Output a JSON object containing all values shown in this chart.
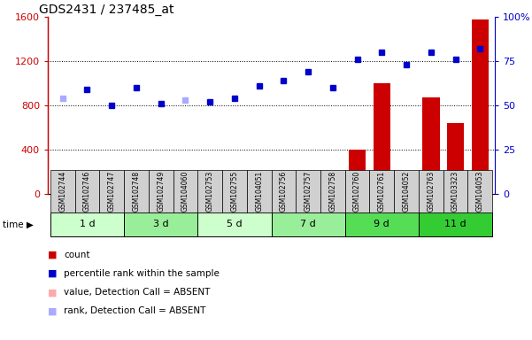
{
  "title": "GDS2431 / 237485_at",
  "samples": [
    "GSM102744",
    "GSM102746",
    "GSM102747",
    "GSM102748",
    "GSM102749",
    "GSM104060",
    "GSM102753",
    "GSM102755",
    "GSM104051",
    "GSM102756",
    "GSM102757",
    "GSM102758",
    "GSM102760",
    "GSM102761",
    "GSM104052",
    "GSM102763",
    "GSM103323",
    "GSM104053"
  ],
  "count_values": [
    20,
    80,
    15,
    90,
    25,
    130,
    90,
    30,
    50,
    110,
    130,
    105,
    400,
    1000,
    195,
    870,
    640,
    1580
  ],
  "percentile_right": [
    54,
    59,
    50,
    60,
    51,
    53,
    52,
    54,
    61,
    64,
    69,
    60,
    76,
    80,
    73,
    80,
    76,
    82
  ],
  "is_absent_count": [
    true,
    false,
    true,
    false,
    false,
    false,
    false,
    true,
    false,
    false,
    false,
    false,
    false,
    false,
    false,
    false,
    false,
    false
  ],
  "is_absent_rank": [
    true,
    false,
    false,
    false,
    false,
    true,
    false,
    false,
    false,
    false,
    false,
    false,
    false,
    false,
    false,
    false,
    false,
    false
  ],
  "time_groups": [
    {
      "label": "1 d",
      "start": 0,
      "end": 3,
      "color": "#ccffcc"
    },
    {
      "label": "3 d",
      "start": 3,
      "end": 6,
      "color": "#99ee99"
    },
    {
      "label": "5 d",
      "start": 6,
      "end": 9,
      "color": "#ccffcc"
    },
    {
      "label": "7 d",
      "start": 9,
      "end": 12,
      "color": "#99ee99"
    },
    {
      "label": "9 d",
      "start": 12,
      "end": 15,
      "color": "#55dd55"
    },
    {
      "label": "11 d",
      "start": 15,
      "end": 18,
      "color": "#33cc33"
    }
  ],
  "ylim_left": [
    0,
    1600
  ],
  "ylim_right": [
    0,
    100
  ],
  "yticks_left": [
    0,
    400,
    800,
    1200,
    1600
  ],
  "yticks_right": [
    0,
    25,
    50,
    75,
    100
  ],
  "bar_color": "#cc0000",
  "dot_color": "#0000cc",
  "absent_bar_color": "#ffaaaa",
  "absent_dot_color": "#aaaaff",
  "left_axis_color": "#cc0000",
  "right_axis_color": "#0000cc",
  "legend_items": [
    {
      "color": "#cc0000",
      "label": "count"
    },
    {
      "color": "#0000cc",
      "label": "percentile rank within the sample"
    },
    {
      "color": "#ffaaaa",
      "label": "value, Detection Call = ABSENT"
    },
    {
      "color": "#aaaaff",
      "label": "rank, Detection Call = ABSENT"
    }
  ]
}
